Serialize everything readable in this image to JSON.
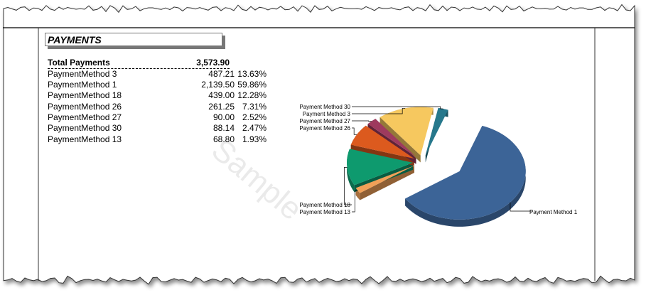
{
  "report": {
    "section_title": "PAYMENTS",
    "total_label": "Total Payments",
    "total_amount": "3,573.90",
    "rows": [
      {
        "name": "PaymentMethod 3",
        "amount": "487.21",
        "percent": "13.63%"
      },
      {
        "name": "PaymentMethod 1",
        "amount": "2,139.50",
        "percent": "59.86%"
      },
      {
        "name": "PaymentMethod 18",
        "amount": "439.00",
        "percent": "12.28%"
      },
      {
        "name": "PaymentMethod 26",
        "amount": "261.25",
        "percent": "7.31%"
      },
      {
        "name": "PaymentMethod 27",
        "amount": "90.00",
        "percent": "2.52%"
      },
      {
        "name": "PaymentMethod 30",
        "amount": "88.14",
        "percent": "2.47%"
      },
      {
        "name": "PaymentMethod 13",
        "amount": "68.80",
        "percent": "1.93%"
      }
    ],
    "watermark": "Sample"
  },
  "chart_data": {
    "type": "pie",
    "style": "3d-exploded",
    "slices": [
      {
        "label": "Payment Method 1",
        "value": 2139.5,
        "color": "#3C6497"
      },
      {
        "label": "Payment Method 13",
        "value": 68.8,
        "color": "#F0A058"
      },
      {
        "label": "Payment Method 18",
        "value": 439.0,
        "color": "#0E9A6E"
      },
      {
        "label": "Payment Method 26",
        "value": 261.25,
        "color": "#DC5A1E"
      },
      {
        "label": "Payment Method 27",
        "value": 90.0,
        "color": "#9E3A5E"
      },
      {
        "label": "Payment Method 3",
        "value": 487.21,
        "color": "#F6C85F"
      },
      {
        "label": "Payment Method 30",
        "value": 88.14,
        "color": "#26788C"
      }
    ]
  }
}
